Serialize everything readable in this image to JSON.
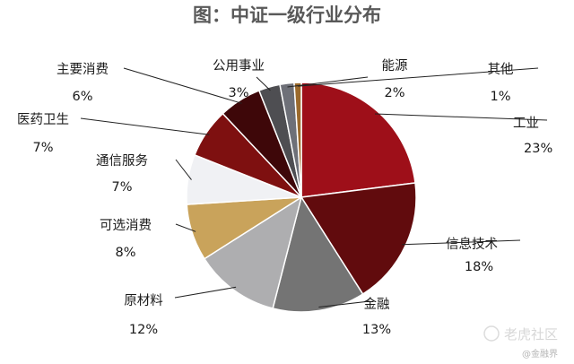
{
  "chart_data": {
    "type": "pie",
    "title": "图：中证一级行业分布",
    "slices": [
      {
        "name": "工业",
        "label": "工业",
        "value_label": "23%",
        "value": 23,
        "color": "#9e0f19"
      },
      {
        "name": "信息技术",
        "label": "信息技术",
        "value_label": "18%",
        "value": 18,
        "color": "#610b0d"
      },
      {
        "name": "金融",
        "label": "金融",
        "value_label": "13%",
        "value": 13,
        "color": "#747474"
      },
      {
        "name": "原材料",
        "label": "原材料",
        "value_label": "12%",
        "value": 12,
        "color": "#aeaeb0"
      },
      {
        "name": "可选消费",
        "label": "可选消费",
        "value_label": "8%",
        "value": 8,
        "color": "#c9a35b"
      },
      {
        "name": "通信服务",
        "label": "通信服务",
        "value_label": "7%",
        "value": 7,
        "color": "#f0f1f4"
      },
      {
        "name": "医药卫生",
        "label": "医药卫生",
        "value_label": "7%",
        "value": 7,
        "color": "#7e1010"
      },
      {
        "name": "主要消费",
        "label": "主要消费",
        "value_label": "6%",
        "value": 6,
        "color": "#3e0709"
      },
      {
        "name": "公用事业",
        "label": "公用事业",
        "value_label": "3%",
        "value": 3,
        "color": "#4e4e52"
      },
      {
        "name": "能源",
        "label": "能源",
        "value_label": "2%",
        "value": 2,
        "color": "#6e7078"
      },
      {
        "name": "其他",
        "label": "其他",
        "value_label": "1%",
        "value": 1,
        "color": "#9b6a2c"
      }
    ]
  },
  "watermark": {
    "brand": "老虎社区",
    "sub": "@金融界"
  }
}
